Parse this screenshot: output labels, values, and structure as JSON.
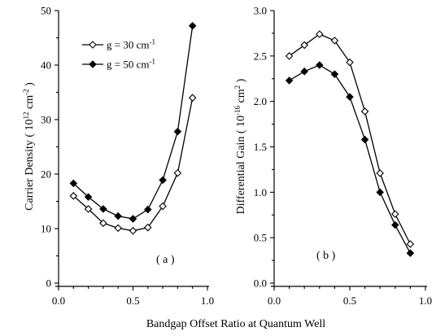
{
  "chart_data": [
    {
      "type": "line",
      "panel_label": "( a )",
      "x": [
        0.1,
        0.2,
        0.3,
        0.4,
        0.5,
        0.6,
        0.7,
        0.8,
        0.9
      ],
      "xlim": [
        0,
        1.0
      ],
      "xticks": [
        "0.0",
        "0.5",
        "1.0"
      ],
      "ylim": [
        0,
        50
      ],
      "yticks": [
        "0",
        "10",
        "20",
        "30",
        "40",
        "50"
      ],
      "ylabel": "Carrier Density ( 10^12 cm^-2 )",
      "ylabel_base": "Carrier Density",
      "ylabel_power": "12",
      "ylabel_unit": "cm",
      "ylabel_unit_power": "-2",
      "legend_position": "top-left",
      "series": [
        {
          "name": "g = 30 cm-1",
          "name_main": "g = 30 cm",
          "name_power": "-1",
          "marker": "open-diamond",
          "color": "#000000",
          "values": [
            16.0,
            13.6,
            11.0,
            10.1,
            9.6,
            10.2,
            14.1,
            20.2,
            34.0
          ]
        },
        {
          "name": "g = 50 cm-1",
          "name_main": "g = 50 cm",
          "name_power": "-1",
          "marker": "filled-diamond",
          "color": "#000000",
          "values": [
            18.3,
            15.8,
            13.6,
            12.3,
            11.8,
            13.5,
            18.9,
            27.8,
            47.2
          ]
        }
      ]
    },
    {
      "type": "line",
      "panel_label": "( b )",
      "x": [
        0.1,
        0.2,
        0.3,
        0.4,
        0.5,
        0.6,
        0.7,
        0.8,
        0.9
      ],
      "xlim": [
        0,
        1.0
      ],
      "xticks": [
        "0.0",
        "0.5",
        "1.0"
      ],
      "ylim": [
        0,
        3.0
      ],
      "yticks": [
        "0.0",
        "0.5",
        "1.0",
        "1.5",
        "2.0",
        "2.5",
        "3.0"
      ],
      "ylabel": "Differential Gain ( 10^-16 cm^2 )",
      "ylabel_base": "Differential Gain",
      "ylabel_power": "-16",
      "ylabel_unit": "cm",
      "ylabel_unit_power": "2",
      "series": [
        {
          "name": "g = 30 cm-1",
          "marker": "open-diamond",
          "color": "#000000",
          "values": [
            2.5,
            2.62,
            2.74,
            2.67,
            2.43,
            1.89,
            1.21,
            0.76,
            0.43
          ]
        },
        {
          "name": "g = 50 cm-1",
          "marker": "filled-diamond",
          "color": "#000000",
          "values": [
            2.23,
            2.33,
            2.4,
            2.3,
            2.05,
            1.58,
            1.0,
            0.64,
            0.33
          ]
        }
      ]
    }
  ],
  "shared_xlabel": "Bandgap Offset Ratio at Quantum Well"
}
